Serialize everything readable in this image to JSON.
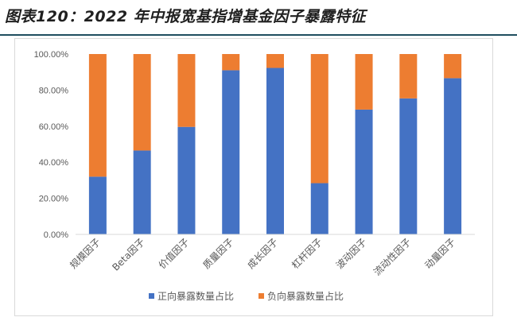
{
  "title": "图表120：2022 年中报宽基指增基金因子暴露特征",
  "chart_data": {
    "type": "bar",
    "stacked": true,
    "percent": true,
    "categories": [
      "规模因子",
      "Beta因子",
      "价值因子",
      "质量因子",
      "成长因子",
      "杠杆因子",
      "波动因子",
      "流动性因子",
      "动量因子"
    ],
    "series": [
      {
        "name": "正向暴露数量占比",
        "color": "#4472c4",
        "values": [
          32.0,
          46.5,
          59.6,
          91.0,
          92.3,
          28.4,
          69.2,
          75.4,
          86.6
        ]
      },
      {
        "name": "负向暴露数量占比",
        "color": "#ed7d31",
        "values": [
          68.0,
          53.5,
          40.4,
          9.0,
          7.7,
          71.6,
          30.8,
          24.6,
          13.4
        ]
      }
    ],
    "ylim": [
      0,
      100
    ],
    "yticks": [
      "0.00%",
      "20.00%",
      "40.00%",
      "60.00%",
      "80.00%",
      "100.00%"
    ],
    "grid": false,
    "legend_position": "bottom"
  }
}
